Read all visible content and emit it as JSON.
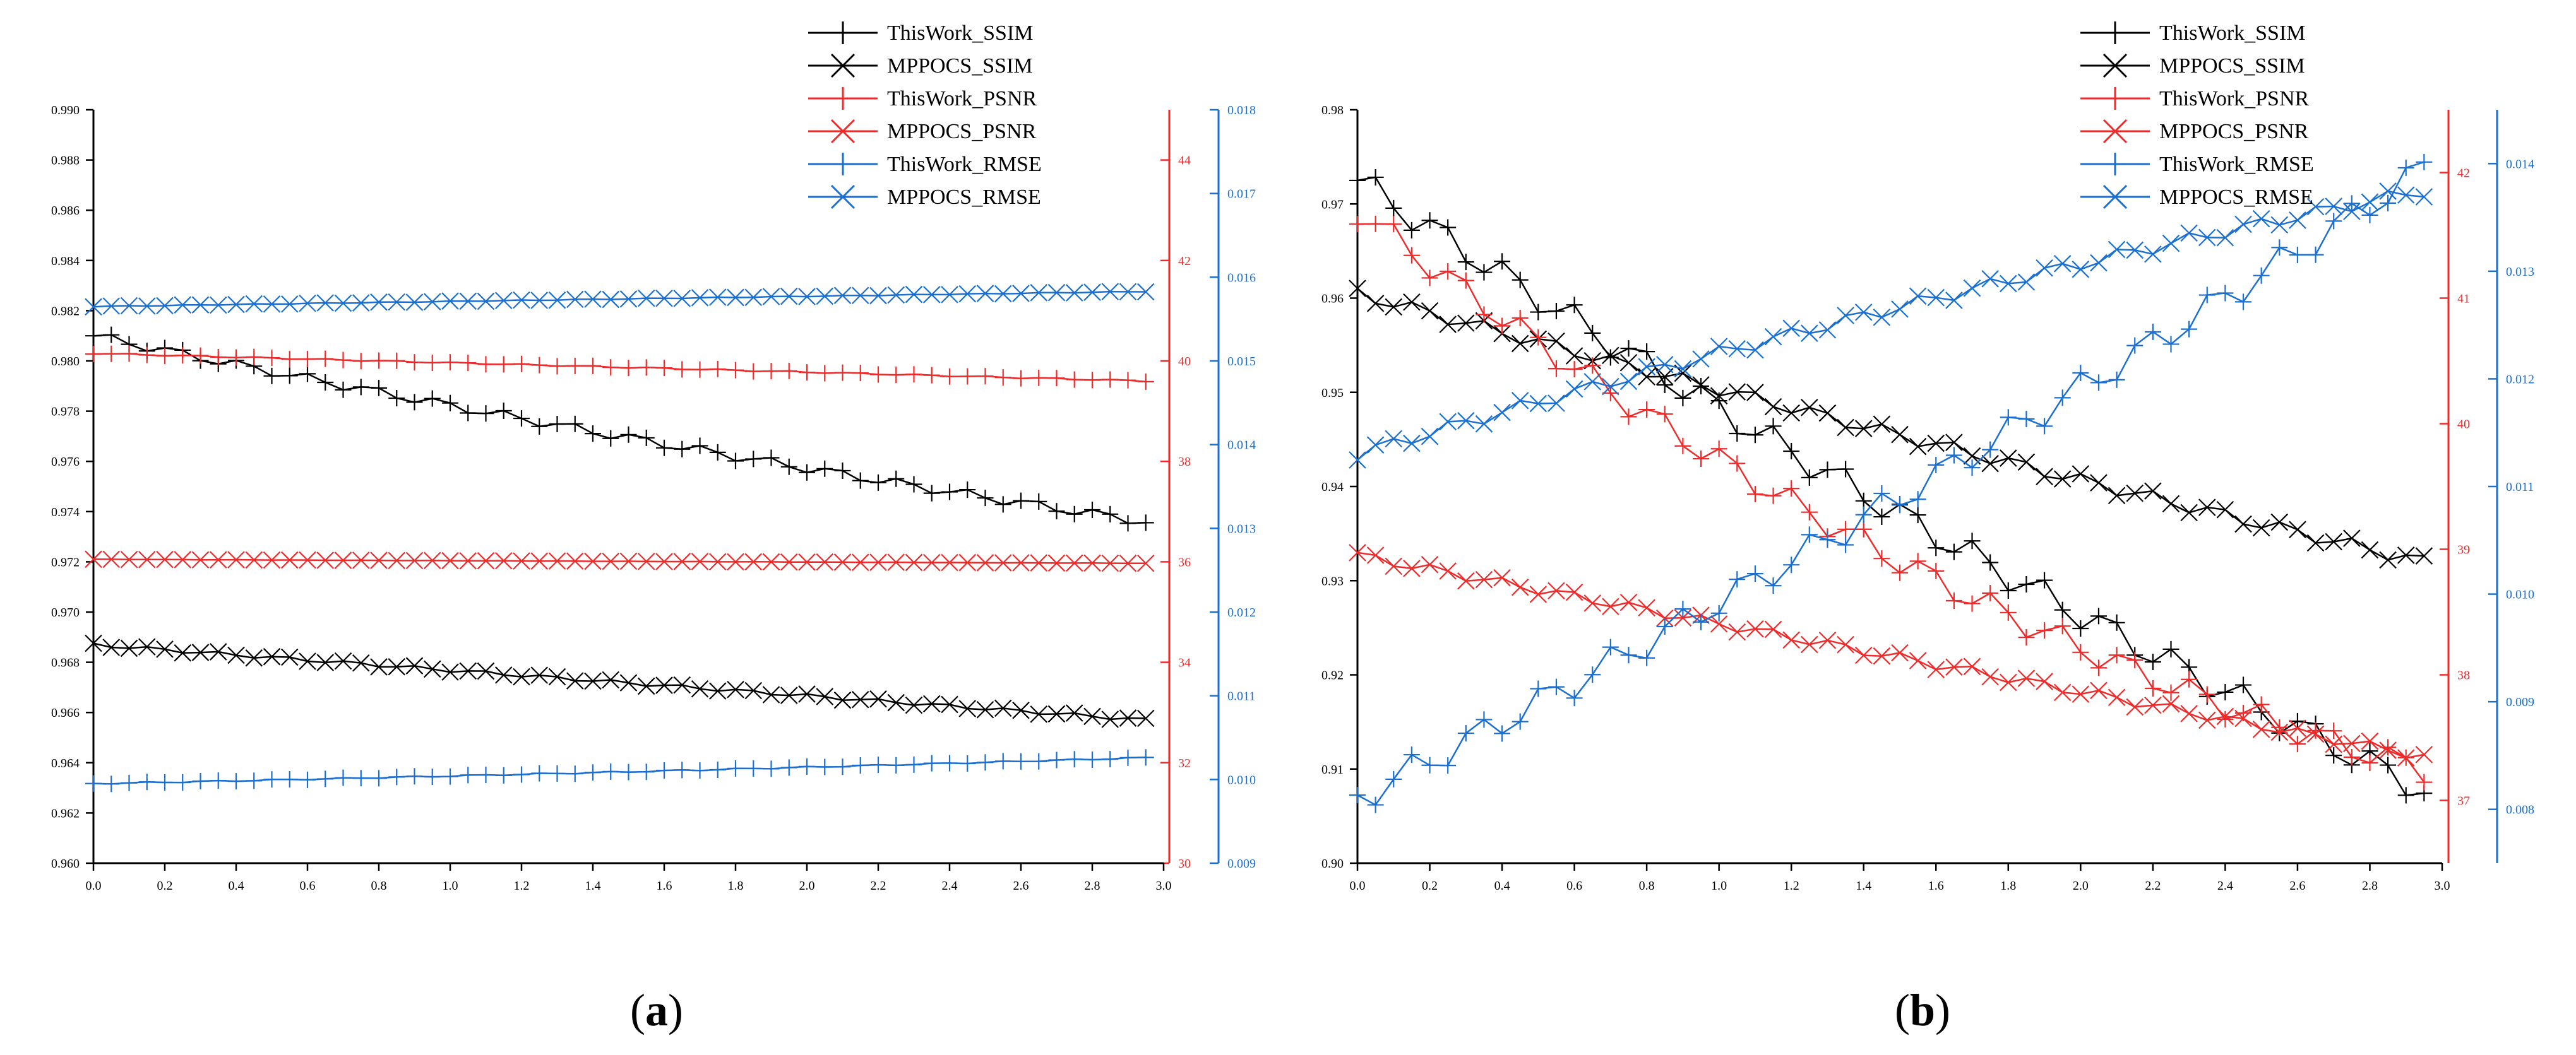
{
  "colors": {
    "black": "#000000",
    "red": "#ee2a2a",
    "blue": "#1a6fd1"
  },
  "chart_data": [
    {
      "panel": "(a)",
      "panel_letter": "a",
      "type": "line",
      "x": [
        0.0,
        0.05,
        0.1,
        0.15,
        0.2,
        0.25,
        0.3,
        0.35,
        0.4,
        0.45,
        0.5,
        0.55,
        0.6,
        0.65,
        0.7,
        0.75,
        0.8,
        0.85,
        0.9,
        0.95,
        1.0,
        1.05,
        1.1,
        1.15,
        1.2,
        1.25,
        1.3,
        1.35,
        1.4,
        1.45,
        1.5,
        1.55,
        1.6,
        1.65,
        1.7,
        1.75,
        1.8,
        1.85,
        1.9,
        1.95,
        2.0,
        2.05,
        2.1,
        2.15,
        2.2,
        2.25,
        2.3,
        2.35,
        2.4,
        2.45,
        2.5,
        2.55,
        2.6,
        2.65,
        2.7,
        2.75,
        2.8,
        2.85,
        2.9,
        2.95
      ],
      "xlim": [
        0,
        3.0
      ],
      "xticks": [
        "0.0",
        "0.2",
        "0.4",
        "0.6",
        "0.8",
        "1.0",
        "1.2",
        "1.4",
        "1.6",
        "1.8",
        "2.0",
        "2.2",
        "2.4",
        "2.6",
        "2.8",
        "3.0"
      ],
      "axes": {
        "ssim": {
          "ylim": [
            0.96,
            0.99
          ],
          "side": "left",
          "color": "black",
          "ticks": [
            "0.960",
            "0.962",
            "0.964",
            "0.966",
            "0.968",
            "0.970",
            "0.972",
            "0.974",
            "0.976",
            "0.978",
            "0.980",
            "0.982",
            "0.984",
            "0.986",
            "0.988",
            "0.990"
          ]
        },
        "psnr": {
          "ylim": [
            30,
            45
          ],
          "side": "right",
          "color": "red",
          "ticks": [
            "30",
            "32",
            "34",
            "36",
            "38",
            "40",
            "42",
            "44"
          ]
        },
        "rmse": {
          "ylim": [
            0.009,
            0.018
          ],
          "side": "right-outer",
          "color": "blue",
          "ticks": [
            "0.009",
            "0.010",
            "0.011",
            "0.012",
            "0.013",
            "0.014",
            "0.015",
            "0.016",
            "0.017",
            "0.018"
          ]
        }
      },
      "series": [
        {
          "name": "ThisWork_SSIM",
          "axis": "ssim",
          "color": "black",
          "marker": "plus",
          "start": 0.981,
          "end": 0.9736,
          "curve": 0.04
        },
        {
          "name": "MPPOCS_SSIM",
          "axis": "ssim",
          "color": "black",
          "marker": "x",
          "start": 0.9687,
          "end": 0.9657,
          "curve": 0.0
        },
        {
          "name": "ThisWork_PSNR",
          "axis": "psnr",
          "color": "red",
          "marker": "plus",
          "start": 40.15,
          "end": 39.6,
          "curve": 0.0
        },
        {
          "name": "MPPOCS_PSNR",
          "axis": "psnr",
          "color": "red",
          "marker": "x",
          "start": 36.05,
          "end": 35.97,
          "curve": 0.0
        },
        {
          "name": "ThisWork_RMSE",
          "axis": "rmse",
          "color": "blue",
          "marker": "plus",
          "start": 0.00995,
          "end": 0.01026,
          "curve": -0.05
        },
        {
          "name": "MPPOCS_RMSE",
          "axis": "rmse",
          "color": "blue",
          "marker": "x",
          "start": 0.01565,
          "end": 0.01583,
          "curve": 0.0
        }
      ],
      "legend": [
        "ThisWork_SSIM",
        "MPPOCS_SSIM",
        "ThisWork_PSNR",
        "MPPOCS_PSNR",
        "ThisWork_RMSE",
        "MPPOCS_RMSE"
      ]
    },
    {
      "panel": "(b)",
      "panel_letter": "b",
      "type": "line",
      "x": [
        0.0,
        0.05,
        0.1,
        0.15,
        0.2,
        0.25,
        0.3,
        0.35,
        0.4,
        0.45,
        0.5,
        0.55,
        0.6,
        0.65,
        0.7,
        0.75,
        0.8,
        0.85,
        0.9,
        0.95,
        1.0,
        1.05,
        1.1,
        1.15,
        1.2,
        1.25,
        1.3,
        1.35,
        1.4,
        1.45,
        1.5,
        1.55,
        1.6,
        1.65,
        1.7,
        1.75,
        1.8,
        1.85,
        1.9,
        1.95,
        2.0,
        2.05,
        2.1,
        2.15,
        2.2,
        2.25,
        2.3,
        2.35,
        2.4,
        2.45,
        2.5,
        2.55,
        2.6,
        2.65,
        2.7,
        2.75,
        2.8,
        2.85,
        2.9,
        2.95
      ],
      "xlim": [
        0,
        3.0
      ],
      "xticks": [
        "0.0",
        "0.2",
        "0.4",
        "0.6",
        "0.8",
        "1.0",
        "1.2",
        "1.4",
        "1.6",
        "1.8",
        "2.0",
        "2.2",
        "2.4",
        "2.6",
        "2.8",
        "3.0"
      ],
      "axes": {
        "ssim": {
          "ylim": [
            0.9,
            0.98
          ],
          "side": "left",
          "color": "black",
          "ticks": [
            "0.90",
            "0.91",
            "0.92",
            "0.93",
            "0.94",
            "0.95",
            "0.96",
            "0.97",
            "0.98"
          ]
        },
        "psnr": {
          "ylim": [
            36.5,
            42.5
          ],
          "side": "right",
          "color": "red",
          "ticks": [
            "37",
            "38",
            "39",
            "40",
            "41",
            "42"
          ]
        },
        "rmse": {
          "ylim": [
            0.0075,
            0.0145
          ],
          "side": "right-outer",
          "color": "blue",
          "ticks": [
            "0.008",
            "0.009",
            "0.010",
            "0.011",
            "0.012",
            "0.013",
            "0.014"
          ]
        }
      },
      "series": [
        {
          "name": "ThisWork_SSIM",
          "axis": "ssim",
          "color": "black",
          "marker": "plus",
          "start": 0.9725,
          "end": 0.9078,
          "curve": 0.04
        },
        {
          "name": "MPPOCS_SSIM",
          "axis": "ssim",
          "color": "black",
          "marker": "x",
          "start": 0.9605,
          "end": 0.932,
          "curve": 0.02
        },
        {
          "name": "ThisWork_PSNR",
          "axis": "psnr",
          "color": "red",
          "marker": "plus",
          "start": 41.7,
          "end": 37.25,
          "curve": 0.12
        },
        {
          "name": "MPPOCS_PSNR",
          "axis": "psnr",
          "color": "red",
          "marker": "x",
          "start": 38.95,
          "end": 37.35,
          "curve": 0.0
        },
        {
          "name": "ThisWork_RMSE",
          "axis": "rmse",
          "color": "blue",
          "marker": "plus",
          "start": 0.0081,
          "end": 0.01395,
          "curve": -0.03
        },
        {
          "name": "MPPOCS_RMSE",
          "axis": "rmse",
          "color": "blue",
          "marker": "x",
          "start": 0.0113,
          "end": 0.01375,
          "curve": 0.05
        }
      ],
      "legend": [
        "ThisWork_SSIM",
        "MPPOCS_SSIM",
        "ThisWork_PSNR",
        "MPPOCS_PSNR",
        "ThisWork_RMSE",
        "MPPOCS_RMSE"
      ]
    }
  ]
}
